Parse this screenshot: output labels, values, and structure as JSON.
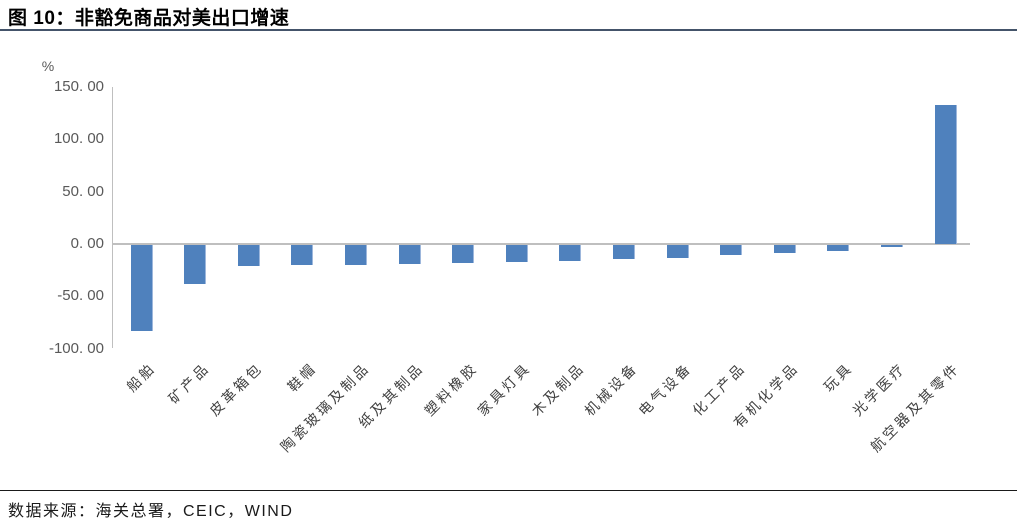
{
  "figure": {
    "title": "图 10：非豁免商品对美出口增速",
    "source": "数据来源：海关总署，CEIC，WIND"
  },
  "chart_data": {
    "type": "bar",
    "title": "非豁免商品对美出口增速",
    "unit_label": "%",
    "categories": [
      "船舶",
      "矿产品",
      "皮革箱包",
      "鞋帽",
      "陶瓷玻璃及制品",
      "纸及其制品",
      "塑料橡胶",
      "家具灯具",
      "木及制品",
      "机械设备",
      "电气设备",
      "化工产品",
      "有机化学品",
      "玩具",
      "光学医疗",
      "航空器及其零件"
    ],
    "values": [
      -82,
      -37,
      -20.5,
      -19.5,
      -19,
      -18,
      -17,
      -16,
      -15,
      -13,
      -12,
      -9.5,
      -8,
      -5.5,
      -1.5,
      133
    ],
    "xlabel": "",
    "ylabel": "%",
    "ylim": [
      -100,
      150
    ],
    "yticks": [
      150,
      100,
      50,
      0,
      -50,
      -100
    ],
    "ytick_labels": [
      "150. 00",
      "100. 00",
      "50. 00",
      "0. 00",
      "-50. 00",
      "-100. 00"
    ],
    "grid": false,
    "legend": null,
    "bar_color": "#4F81BD",
    "bar_edge_color": "#9DB7DC",
    "axis_color": "#BFBFBF"
  },
  "colors": {
    "title_rule": "#44546A",
    "source_rule": "#1a1a1a",
    "tick_text": "#595959"
  }
}
